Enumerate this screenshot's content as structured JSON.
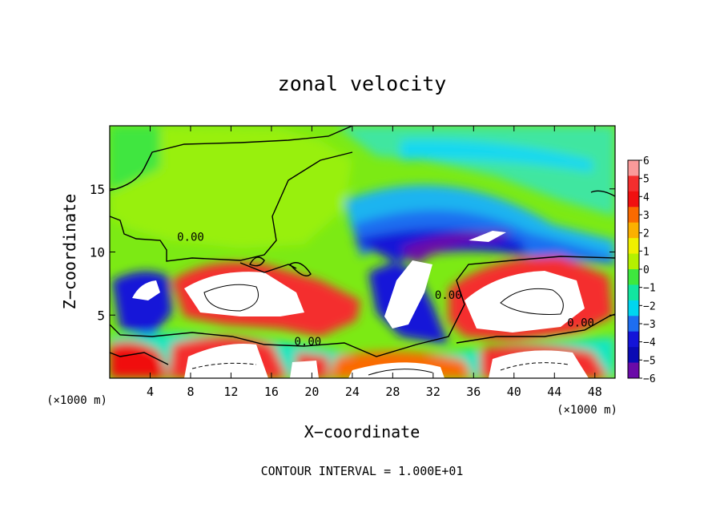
{
  "chart_data": {
    "type": "heatmap",
    "title": "zonal velocity",
    "xlabel": "X−coordinate",
    "ylabel": "Z−coordinate",
    "x_unit_left": "(×1000 m)",
    "x_unit_right": "(×1000 m)",
    "footer": "CONTOUR INTERVAL = 1.000E+01",
    "xlim": [
      0,
      50
    ],
    "ylim": [
      0,
      20
    ],
    "x_ticks": [
      4,
      8,
      12,
      16,
      20,
      24,
      28,
      32,
      36,
      40,
      44,
      48
    ],
    "y_ticks": [
      5,
      10,
      15
    ],
    "colorbar": {
      "ticks": [
        "6",
        "5",
        "4",
        "3",
        "2",
        "1",
        "0",
        "−1",
        "−2",
        "−3",
        "−4",
        "−5",
        "−6"
      ],
      "colors": [
        "#fa9a9a",
        "#f42e2e",
        "#f01010",
        "#fa6a00",
        "#fbb000",
        "#f0f000",
        "#b4f000",
        "#3ee83e",
        "#12e6a0",
        "#00d6f0",
        "#1e6ef0",
        "#1414d8",
        "#0a0ab4",
        "#6a0aa8"
      ]
    },
    "contour_labels": [
      {
        "text": "0.00",
        "x": 8,
        "y": 10.9
      },
      {
        "text": "0.00",
        "x": 33.5,
        "y": 6.3
      },
      {
        "text": "0.00",
        "x": 19.6,
        "y": 2.6
      },
      {
        "text": "0.00",
        "x": 46.6,
        "y": 4.1
      }
    ]
  }
}
